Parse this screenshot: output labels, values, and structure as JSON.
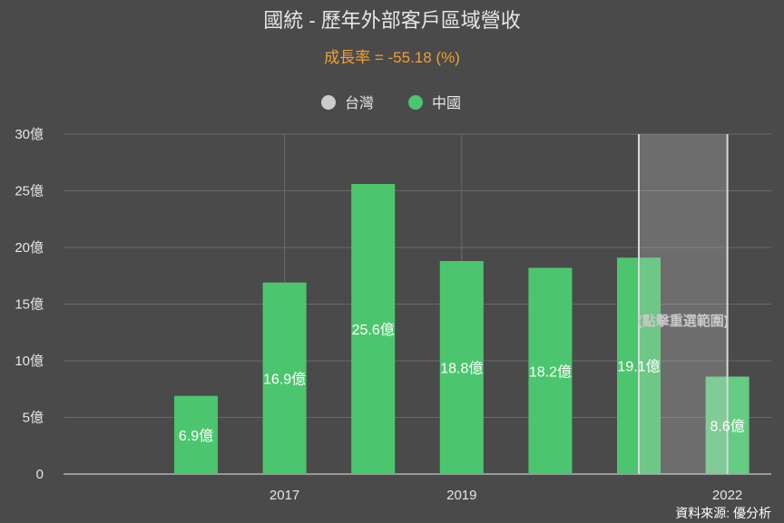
{
  "chart_data": {
    "type": "bar",
    "title": "國統 - 歷年外部客戶區域營收",
    "subtitle": "成長率 = -55.18 (%)",
    "x": [
      2016,
      2017,
      2018,
      2019,
      2020,
      2021,
      2022
    ],
    "x_tick_labels": [
      "2017",
      "2019",
      "2022"
    ],
    "x_tick_values": [
      2017,
      2019,
      2022
    ],
    "y_tick_labels": [
      "0",
      "5億",
      "10億",
      "15億",
      "20億",
      "25億",
      "30億"
    ],
    "ylim": [
      0,
      30
    ],
    "ytick_step": 5,
    "series": [
      {
        "name": "台灣",
        "color": "#cccccc",
        "values": [
          0,
          0,
          0,
          0,
          0,
          0,
          0
        ]
      },
      {
        "name": "中國",
        "color": "#4cc66e",
        "values": [
          6.9,
          16.9,
          25.6,
          18.8,
          18.2,
          19.1,
          8.6
        ],
        "labels": [
          "6.9億",
          "16.9億",
          "25.6億",
          "18.8億",
          "18.2億",
          "19.1億",
          "8.6億"
        ]
      }
    ],
    "selection": {
      "from": 2021,
      "to": 2022,
      "label": "(點擊重選範圍)"
    },
    "grid": true,
    "legend": "top-center"
  },
  "source_text": "資料來源: 優分析"
}
